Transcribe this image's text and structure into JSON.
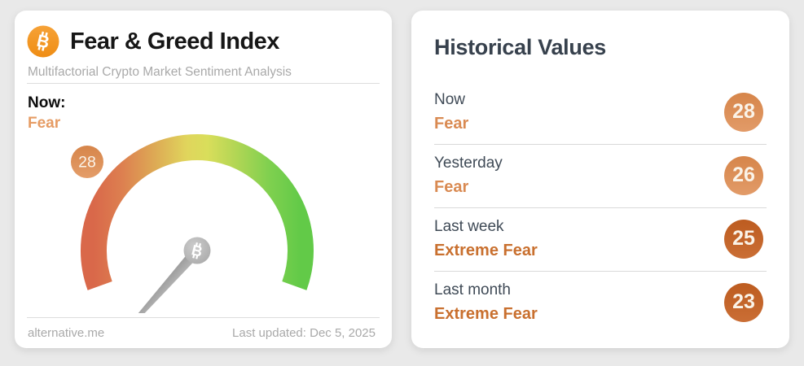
{
  "left_card": {
    "title": "Fear & Greed Index",
    "subtitle": "Multifactorial Crypto Market Sentiment Analysis",
    "now_label": "Now:",
    "now_classification": "Fear",
    "gauge": {
      "value": 28,
      "min": 0,
      "max": 100,
      "sweep_degrees": 220
    },
    "footer": {
      "source": "alternative.me",
      "last_updated": "Last updated: Dec 5, 2025"
    }
  },
  "right_card": {
    "title": "Historical Values",
    "rows": [
      {
        "label": "Now",
        "classification": "Fear",
        "value": "28",
        "tone": "light"
      },
      {
        "label": "Yesterday",
        "classification": "Fear",
        "value": "26",
        "tone": "light"
      },
      {
        "label": "Last week",
        "classification": "Extreme Fear",
        "value": "25",
        "tone": "dark"
      },
      {
        "label": "Last month",
        "classification": "Extreme Fear",
        "value": "23",
        "tone": "dark"
      }
    ]
  },
  "colors": {
    "page_background": "#e9e9e9",
    "card_background": "#ffffff",
    "bitcoin_orange": "#f29322",
    "fear_orange": "#d98a52",
    "extreme_fear_orange": "#c9702f",
    "badge_light": "#dd8c52",
    "badge_dark": "#c2601f",
    "gauge_red": "#d9684a",
    "gauge_yellow": "#e0d85c",
    "gauge_green": "#62ca48",
    "needle_gray": "#a6a6a6"
  },
  "chart_data": {
    "type": "gauge",
    "title": "Fear & Greed Index",
    "subtitle": "Multifactorial Crypto Market Sentiment Analysis",
    "value": 28,
    "min": 0,
    "max": 100,
    "classification": "Fear",
    "scale": "red (0, Extreme Fear) through yellow (50) to green (100, Extreme Greed)",
    "historical": [
      {
        "label": "Now",
        "value": 28,
        "classification": "Fear"
      },
      {
        "label": "Yesterday",
        "value": 26,
        "classification": "Fear"
      },
      {
        "label": "Last week",
        "value": 25,
        "classification": "Extreme Fear"
      },
      {
        "label": "Last month",
        "value": 23,
        "classification": "Extreme Fear"
      }
    ]
  }
}
